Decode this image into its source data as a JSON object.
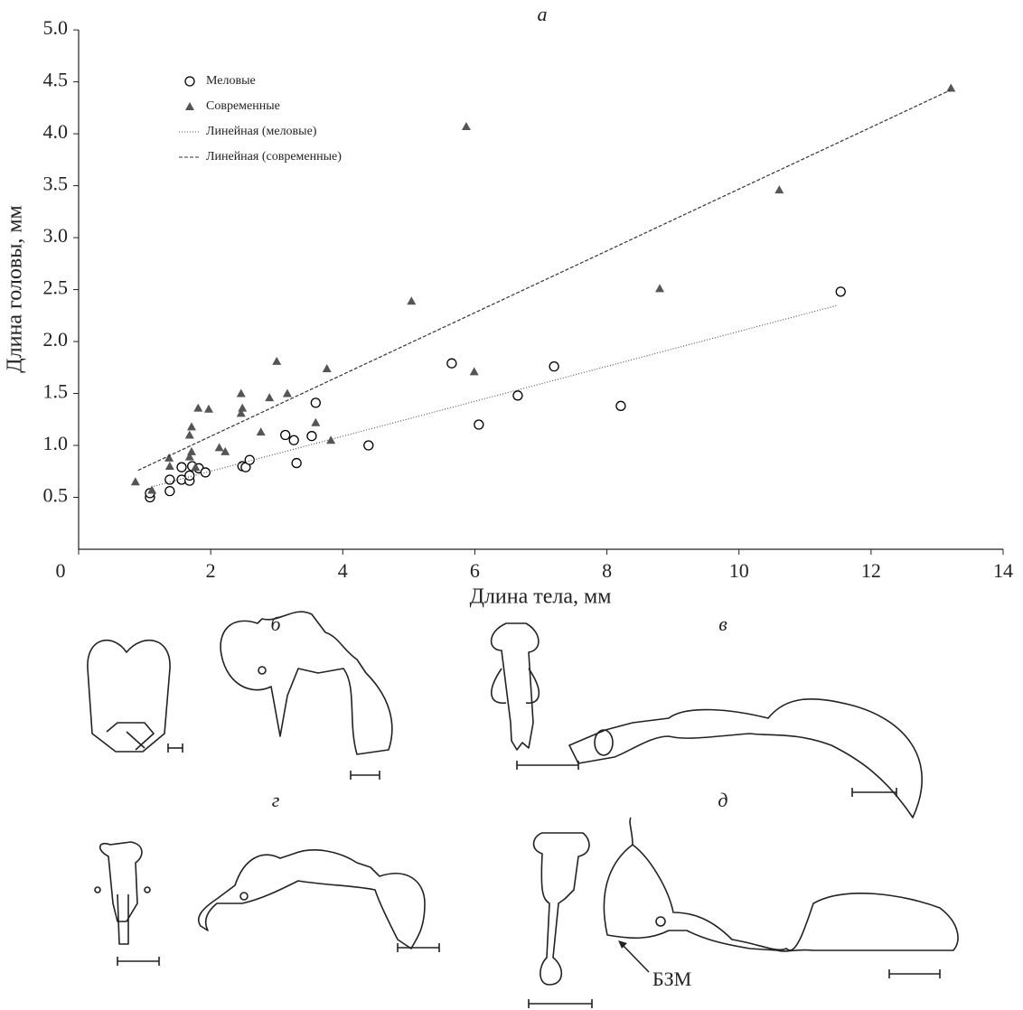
{
  "chart_data": {
    "type": "scatter",
    "title": "а",
    "x_label": "Длина тела, мм",
    "y_label": "Длина головы, мм",
    "xlim": [
      0,
      14
    ],
    "ylim": [
      0,
      5
    ],
    "xticks": [
      0,
      2,
      4,
      6,
      8,
      10,
      12,
      14
    ],
    "yticks": [
      0.5,
      {
        "value": 1,
        "label": "1.0"
      },
      1.5,
      {
        "value": 2,
        "label": "2.0"
      },
      2.5,
      {
        "value": 3,
        "label": "3.0"
      },
      3.5,
      {
        "value": 4,
        "label": "4.0"
      },
      4.5,
      {
        "value": 5,
        "label": "5.0"
      }
    ],
    "legend": "upper left",
    "series": [
      {
        "name": "Меловые",
        "type": "scatter",
        "marker": "circle",
        "color": "#000000",
        "x": [
          1.08,
          1.08,
          1.38,
          1.38,
          1.56,
          1.56,
          1.68,
          1.68,
          1.72,
          1.82,
          1.92,
          2.48,
          2.53,
          2.59,
          3.13,
          3.26,
          3.3,
          3.53,
          3.59,
          4.39,
          5.65,
          6.06,
          6.65,
          7.2,
          8.21,
          11.54
        ],
        "values": [
          0.5,
          0.54,
          0.56,
          0.67,
          0.79,
          0.67,
          0.66,
          0.71,
          0.8,
          0.78,
          0.74,
          0.8,
          0.79,
          0.86,
          1.1,
          1.05,
          0.83,
          1.09,
          1.41,
          1.0,
          1.79,
          1.2,
          1.48,
          1.76,
          1.38,
          2.48
        ]
      },
      {
        "name": "Современные",
        "type": "scatter",
        "marker": "triangle",
        "color": "#555555",
        "x": [
          0.86,
          1.11,
          1.37,
          1.38,
          1.68,
          1.68,
          1.71,
          1.71,
          1.77,
          1.81,
          1.97,
          2.13,
          2.22,
          2.46,
          2.46,
          2.48,
          2.76,
          2.89,
          3.0,
          3.16,
          3.59,
          3.76,
          3.82,
          5.04,
          5.87,
          5.99,
          8.8,
          10.61,
          13.21
        ],
        "values": [
          0.65,
          0.57,
          0.88,
          0.8,
          0.89,
          1.1,
          1.18,
          0.94,
          0.79,
          1.36,
          1.35,
          0.98,
          0.94,
          1.5,
          1.31,
          1.36,
          1.13,
          1.46,
          1.81,
          1.5,
          1.22,
          1.74,
          1.05,
          2.39,
          4.07,
          1.71,
          2.51,
          3.46,
          4.44
        ]
      },
      {
        "name": "Линейная (меловые)",
        "type": "line",
        "dash": "1,2",
        "color": "#555555",
        "x": [
          1.1,
          11.5
        ],
        "values": [
          0.6,
          2.35
        ]
      },
      {
        "name": "Линейная (современные)",
        "type": "line",
        "dash": "4,2",
        "color": "#333333",
        "x": [
          0.9,
          13.2
        ],
        "values": [
          0.76,
          4.42
        ]
      }
    ]
  },
  "figure": {
    "panels": [
      "б",
      "в",
      "г",
      "д"
    ],
    "annotation": "БЗМ"
  }
}
